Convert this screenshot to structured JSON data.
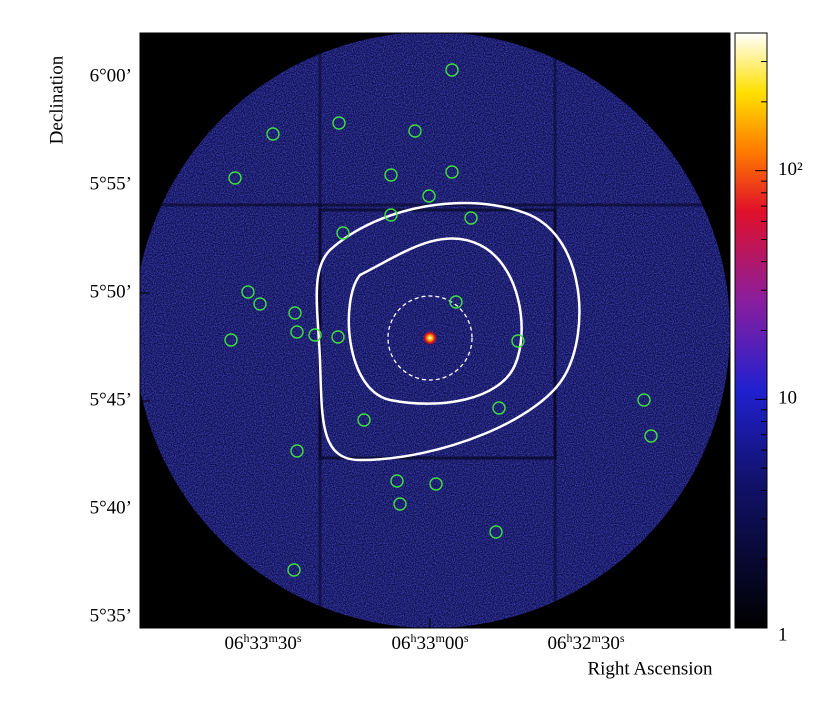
{
  "y_axis": {
    "label": "Declination",
    "ticks": [
      "6°00’",
      "5°55’",
      "5°50’",
      "5°45’",
      "5°40’",
      "5°35’"
    ]
  },
  "x_axis": {
    "label": "Right Ascension",
    "tick_units": [
      "h",
      "m",
      "s"
    ],
    "ticks": [
      [
        "06",
        "33",
        "30"
      ],
      [
        "06",
        "33",
        "00"
      ],
      [
        "06",
        "32",
        "30"
      ]
    ]
  },
  "colorbar": {
    "log": true,
    "lim": [
      1,
      400
    ],
    "ticks": [
      {
        "value": 1,
        "label": "1"
      },
      {
        "value": 10,
        "label": "10"
      },
      {
        "value": 100,
        "label": "10²"
      }
    ]
  }
}
